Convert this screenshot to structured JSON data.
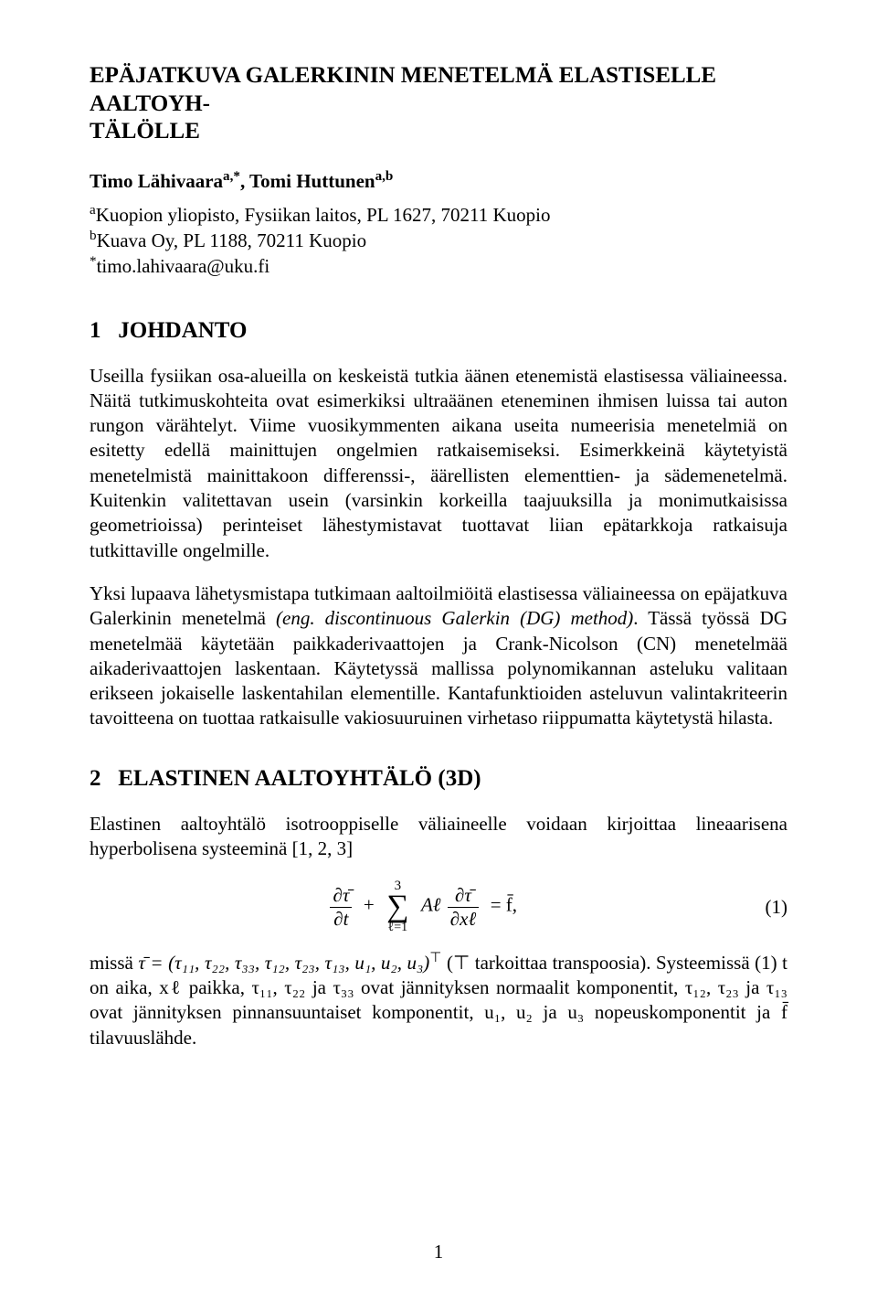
{
  "title_line1": "EPÄJATKUVA GALERKININ MENETELMÄ ELASTISELLE AALTOYH-",
  "title_line2": "TÄLÖLLE",
  "authors_html": "Timo Lähivaara",
  "author1_sup": "a,*",
  "author2": ", Tomi Huttunen",
  "author2_sup": "a,b",
  "affil_a_sup": "a",
  "affil_a": "Kuopion yliopisto, Fysiikan laitos, PL 1627, 70211 Kuopio",
  "affil_b_sup": "b",
  "affil_b": "Kuava Oy, PL 1188, 70211 Kuopio",
  "affil_c_sup": "*",
  "affil_c": "timo.lahivaara@uku.fi",
  "sec1_num": "1",
  "sec1_title": "JOHDANTO",
  "para1": "Useilla fysiikan osa-alueilla on keskeistä tutkia äänen etenemistä elastisessa väliaineessa. Näitä tutkimuskohteita ovat esimerkiksi ultraäänen eteneminen ihmisen luissa tai auton rungon värähtelyt. Viime vuosikymmenten aikana useita numeerisia menetelmiä on esitetty edellä mainittujen ongelmien ratkaisemiseksi. Esimerkkeinä käytetyistä menetelmistä mainittakoon differenssi-, äärellisten elementtien- ja sädemenetelmä. Kuitenkin valitettavan usein (varsinkin korkeilla taajuuksilla ja monimutkaisissa geometrioissa) perinteiset lähestymistavat tuottavat liian epätarkkoja ratkaisuja tutkittaville ongelmille.",
  "para2_a": "Yksi lupaava lähetysmistapa tutkimaan aaltoilmiöitä elastisessa väliaineessa on epäjatkuva Galerkinin menetelmä ",
  "para2_b_italic": "(eng. discontinuous Galerkin (DG) method)",
  "para2_c": ". Tässä työssä DG menetelmää käytetään paikkaderivaattojen ja Crank-Nicolson (CN) menetelmää aikaderivaattojen laskentaan. Käytetyssä mallissa polynomikannan asteluku valitaan erikseen jokaiselle laskentahilan elementille. Kantafunktioiden asteluvun valintakriteerin tavoitteena on tuottaa ratkaisulle vakiosuuruinen virhetaso riippumatta käytetystä hilasta.",
  "sec2_num": "2",
  "sec2_title": "ELASTINEN AALTOYHTÄLÖ (3D)",
  "para3": "Elastinen aaltoyhtälö isotrooppiselle väliaineelle voidaan kirjoittaa lineaarisena hyperbolisena systeeminä [1, 2, 3]",
  "eq": {
    "sum_top": "3",
    "sum_bot": "ℓ=1",
    "num_left": "∂τ̄",
    "den_left": "∂t",
    "coef": "Aℓ",
    "num_right": "∂τ̄",
    "den_right": "∂xℓ",
    "rhs": "= f̄,",
    "num": "(1)"
  },
  "para4_a": "missä ",
  "para4_tau": "τ̄ = (τ₁₁, τ₂₂, τ₃₃, τ₁₂, τ₂₃, τ₁₃, u₁, u₂, u₃)",
  "para4_sup": "⊤",
  "para4_b": " (⊤ tarkoittaa transpoosia). Systeemissä (1) t on aika, xℓ paikka, τ₁₁, τ₂₂ ja τ₃₃ ovat jännityksen normaalit komponentit, τ₁₂, τ₂₃ ja τ₁₃ ovat jännityksen pinnansuuntaiset komponentit, u₁, u₂ ja u₃ nopeuskomponentit ja f̄ tilavuuslähde.",
  "pagenum": "1"
}
